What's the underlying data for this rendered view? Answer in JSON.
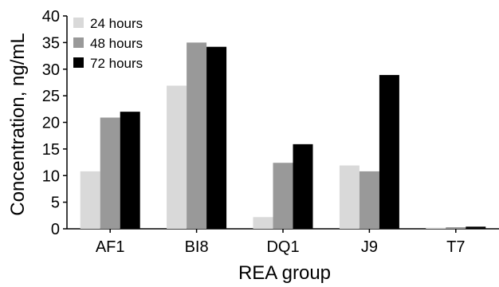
{
  "chart_data": {
    "type": "bar",
    "title": "",
    "xlabel": "REA group",
    "ylabel": "Concentration, ng/mL",
    "ylim": [
      0,
      40
    ],
    "yticks": [
      0,
      5,
      10,
      15,
      20,
      25,
      30,
      35,
      40
    ],
    "categories": [
      "AF1",
      "BI8",
      "DQ1",
      "J9",
      "T7"
    ],
    "series": [
      {
        "name": "24 hours",
        "color": "#d9d9d9",
        "values": [
          10.8,
          26.9,
          2.2,
          11.9,
          0.2
        ]
      },
      {
        "name": "48 hours",
        "color": "#999999",
        "values": [
          20.9,
          35.0,
          12.4,
          10.8,
          0.3
        ]
      },
      {
        "name": "72 hours",
        "color": "#000000",
        "values": [
          22.0,
          34.2,
          15.9,
          28.9,
          0.4
        ]
      }
    ],
    "legend": "top-left",
    "grid": false
  }
}
